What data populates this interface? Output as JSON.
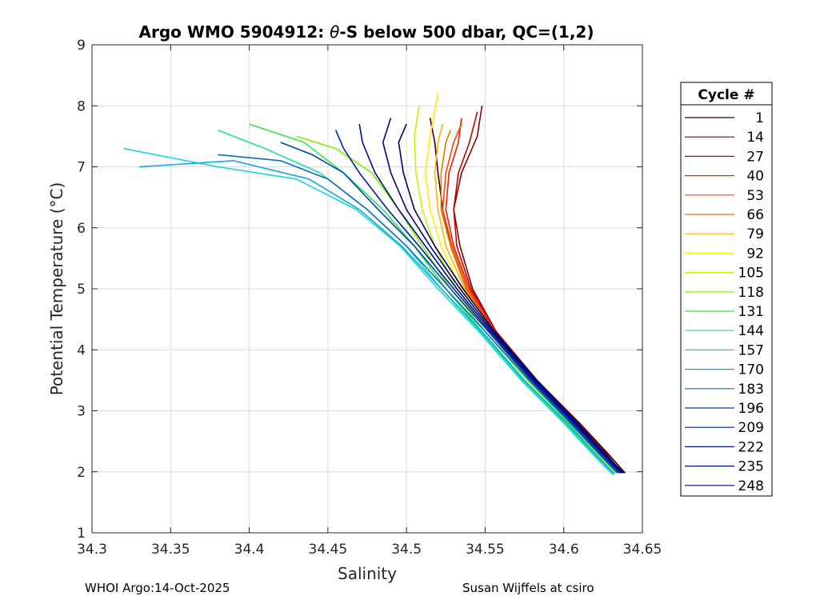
{
  "chart_data": {
    "type": "line",
    "title": "Argo WMO 5904912: θ-S below 500 dbar,  QC=(1,2)",
    "title_parts": {
      "prefix": "Argo WMO 5904912: ",
      "symbol": "θ",
      "suffix": "-S below 500 dbar,  QC=(1,2)"
    },
    "xlabel": "Salinity",
    "ylabel": "Potential Temperature (°C)",
    "xlim": [
      34.3,
      34.65
    ],
    "ylim": [
      1,
      9
    ],
    "xticks": [
      34.3,
      34.35,
      34.4,
      34.45,
      34.5,
      34.55,
      34.6,
      34.65
    ],
    "xtick_labels": [
      "34.3",
      "34.35",
      "34.4",
      "34.45",
      "34.5",
      "34.55",
      "34.6",
      "34.65"
    ],
    "yticks": [
      1,
      2,
      3,
      4,
      5,
      6,
      7,
      8,
      9
    ],
    "ytick_labels": [
      "1",
      "2",
      "3",
      "4",
      "5",
      "6",
      "7",
      "8",
      "9"
    ],
    "grid": true,
    "legend_position": "right",
    "legend": {
      "title": "Cycle #",
      "entries": [
        {
          "label": "1",
          "color": "#3c0000"
        },
        {
          "label": "14",
          "color": "#8c0000"
        },
        {
          "label": "27",
          "color": "#c80000"
        },
        {
          "label": "40",
          "color": "#ee1c00"
        },
        {
          "label": "53",
          "color": "#ff4400"
        },
        {
          "label": "66",
          "color": "#e37800"
        },
        {
          "label": "79",
          "color": "#ffb400"
        },
        {
          "label": "92",
          "color": "#ffee00"
        },
        {
          "label": "105",
          "color": "#c2f500"
        },
        {
          "label": "118",
          "color": "#7cf000"
        },
        {
          "label": "131",
          "color": "#2ee84a"
        },
        {
          "label": "144",
          "color": "#18e6a0"
        },
        {
          "label": "157",
          "color": "#13d8d8"
        },
        {
          "label": "170",
          "color": "#10a8e0"
        },
        {
          "label": "183",
          "color": "#0a6ec8"
        },
        {
          "label": "196",
          "color": "#0046b4"
        },
        {
          "label": "209",
          "color": "#0020a0"
        },
        {
          "label": "222",
          "color": "#000c8c"
        },
        {
          "label": "235",
          "color": "#000680"
        },
        {
          "label": "248",
          "color": "#000070"
        }
      ]
    },
    "series": [
      {
        "name": "1",
        "color": "#3c0000",
        "x": [
          34.639,
          34.628,
          34.61,
          34.582,
          34.555,
          34.538,
          34.528,
          34.523,
          34.52,
          34.518,
          34.515
        ],
        "y": [
          1.98,
          2.3,
          2.8,
          3.5,
          4.3,
          5.0,
          5.7,
          6.3,
          6.9,
          7.4,
          7.8
        ]
      },
      {
        "name": "14",
        "color": "#8c0000",
        "x": [
          34.637,
          34.627,
          34.61,
          34.583,
          34.557,
          34.542,
          34.534,
          34.53,
          34.535,
          34.545,
          34.548
        ],
        "y": [
          1.98,
          2.3,
          2.8,
          3.5,
          4.3,
          5.0,
          5.7,
          6.3,
          6.9,
          7.5,
          8.0
        ]
      },
      {
        "name": "27",
        "color": "#c80000",
        "x": [
          34.636,
          34.626,
          34.609,
          34.583,
          34.557,
          34.541,
          34.532,
          34.53,
          34.533,
          34.54,
          34.545
        ],
        "y": [
          1.98,
          2.3,
          2.8,
          3.5,
          4.3,
          5.0,
          5.7,
          6.3,
          6.9,
          7.4,
          7.9
        ]
      },
      {
        "name": "40",
        "color": "#ee1c00",
        "x": [
          34.636,
          34.625,
          34.608,
          34.582,
          34.556,
          34.54,
          34.53,
          34.525,
          34.527,
          34.533,
          34.535
        ],
        "y": [
          1.98,
          2.3,
          2.8,
          3.5,
          4.3,
          5.0,
          5.7,
          6.3,
          6.9,
          7.4,
          7.8
        ]
      },
      {
        "name": "53",
        "color": "#ff4400",
        "x": [
          34.635,
          34.625,
          34.608,
          34.581,
          34.555,
          34.539,
          34.529,
          34.523,
          34.525,
          34.53,
          34.535
        ],
        "y": [
          1.98,
          2.3,
          2.8,
          3.5,
          4.3,
          5.0,
          5.7,
          6.3,
          6.9,
          7.4,
          7.7
        ]
      },
      {
        "name": "66",
        "color": "#e37800",
        "x": [
          34.634,
          34.624,
          34.607,
          34.58,
          34.555,
          34.538,
          34.528,
          34.522,
          34.522,
          34.525,
          34.528
        ],
        "y": [
          1.98,
          2.3,
          2.8,
          3.5,
          4.3,
          5.0,
          5.7,
          6.3,
          6.9,
          7.4,
          7.6
        ]
      },
      {
        "name": "79",
        "color": "#ffb400",
        "x": [
          34.634,
          34.623,
          34.606,
          34.58,
          34.555,
          34.537,
          34.525,
          34.52,
          34.518,
          34.52,
          34.523
        ],
        "y": [
          1.98,
          2.3,
          2.8,
          3.5,
          4.3,
          5.0,
          5.7,
          6.3,
          6.9,
          7.4,
          7.7
        ]
      },
      {
        "name": "92",
        "color": "#ffee00",
        "x": [
          34.633,
          34.622,
          34.605,
          34.579,
          34.554,
          34.535,
          34.522,
          34.515,
          34.512,
          34.515,
          34.52
        ],
        "y": [
          1.97,
          2.3,
          2.8,
          3.5,
          4.3,
          5.0,
          5.7,
          6.3,
          6.9,
          7.5,
          8.2
        ]
      },
      {
        "name": "105",
        "color": "#c2f500",
        "x": [
          34.633,
          34.621,
          34.604,
          34.578,
          34.552,
          34.532,
          34.518,
          34.51,
          34.506,
          34.505,
          34.508
        ],
        "y": [
          1.97,
          2.3,
          2.8,
          3.5,
          4.3,
          5.0,
          5.7,
          6.3,
          6.9,
          7.5,
          8.0
        ]
      },
      {
        "name": "118",
        "color": "#7cf000",
        "x": [
          34.632,
          34.62,
          34.603,
          34.577,
          34.55,
          34.528,
          34.51,
          34.495,
          34.478,
          34.455,
          34.43
        ],
        "y": [
          1.96,
          2.3,
          2.8,
          3.5,
          4.3,
          5.0,
          5.7,
          6.3,
          6.9,
          7.3,
          7.5
        ]
      },
      {
        "name": "131",
        "color": "#2ee84a",
        "x": [
          34.632,
          34.62,
          34.602,
          34.575,
          34.548,
          34.525,
          34.505,
          34.485,
          34.46,
          34.435,
          34.4
        ],
        "y": [
          1.96,
          2.3,
          2.8,
          3.5,
          4.3,
          5.0,
          5.7,
          6.3,
          6.9,
          7.4,
          7.7
        ]
      },
      {
        "name": "144",
        "color": "#18e6a0",
        "x": [
          34.631,
          34.619,
          34.601,
          34.574,
          34.547,
          34.522,
          34.5,
          34.475,
          34.445,
          34.41,
          34.38
        ],
        "y": [
          1.96,
          2.3,
          2.8,
          3.5,
          4.3,
          5.0,
          5.7,
          6.3,
          6.9,
          7.3,
          7.6
        ]
      },
      {
        "name": "157",
        "color": "#13d8d8",
        "x": [
          34.631,
          34.618,
          34.6,
          34.573,
          34.546,
          34.52,
          34.496,
          34.468,
          34.43,
          34.38,
          34.32
        ],
        "y": [
          1.96,
          2.3,
          2.8,
          3.5,
          4.3,
          5.0,
          5.7,
          6.3,
          6.8,
          7.0,
          7.3
        ]
      },
      {
        "name": "170",
        "color": "#10a8e0",
        "x": [
          34.632,
          34.62,
          34.602,
          34.575,
          34.548,
          34.522,
          34.497,
          34.47,
          34.438,
          34.39,
          34.33
        ],
        "y": [
          1.97,
          2.3,
          2.8,
          3.5,
          4.3,
          5.0,
          5.7,
          6.3,
          6.8,
          7.1,
          7.0
        ]
      },
      {
        "name": "183",
        "color": "#0a6ec8",
        "x": [
          34.634,
          34.622,
          34.604,
          34.578,
          34.55,
          34.525,
          34.5,
          34.475,
          34.45,
          34.42,
          34.38
        ],
        "y": [
          1.98,
          2.3,
          2.8,
          3.5,
          4.3,
          5.0,
          5.7,
          6.3,
          6.8,
          7.1,
          7.2
        ]
      },
      {
        "name": "196",
        "color": "#0046b4",
        "x": [
          34.635,
          34.623,
          34.605,
          34.579,
          34.552,
          34.528,
          34.505,
          34.482,
          34.46,
          34.44,
          34.42
        ],
        "y": [
          1.98,
          2.3,
          2.8,
          3.5,
          4.3,
          5.0,
          5.7,
          6.3,
          6.9,
          7.2,
          7.4
        ]
      },
      {
        "name": "209",
        "color": "#0020a0",
        "x": [
          34.636,
          34.624,
          34.606,
          34.58,
          34.553,
          34.53,
          34.508,
          34.488,
          34.47,
          34.46,
          34.455
        ],
        "y": [
          1.98,
          2.3,
          2.8,
          3.5,
          4.3,
          5.0,
          5.7,
          6.3,
          6.9,
          7.3,
          7.6
        ]
      },
      {
        "name": "222",
        "color": "#000c8c",
        "x": [
          34.637,
          34.625,
          34.607,
          34.581,
          34.554,
          34.532,
          34.512,
          34.495,
          34.48,
          34.472,
          34.47
        ],
        "y": [
          1.98,
          2.3,
          2.8,
          3.5,
          4.3,
          5.0,
          5.7,
          6.3,
          6.9,
          7.4,
          7.7
        ]
      },
      {
        "name": "235",
        "color": "#000680",
        "x": [
          34.638,
          34.626,
          34.608,
          34.582,
          34.555,
          34.534,
          34.515,
          34.5,
          34.49,
          34.485,
          34.49
        ],
        "y": [
          1.98,
          2.3,
          2.8,
          3.5,
          4.3,
          5.0,
          5.7,
          6.3,
          6.9,
          7.4,
          7.8
        ]
      },
      {
        "name": "248",
        "color": "#000070",
        "x": [
          34.638,
          34.626,
          34.609,
          34.583,
          34.556,
          34.536,
          34.518,
          34.505,
          34.498,
          34.495,
          34.5
        ],
        "y": [
          1.98,
          2.3,
          2.8,
          3.5,
          4.3,
          5.0,
          5.7,
          6.3,
          6.9,
          7.4,
          7.7
        ]
      }
    ]
  },
  "footer": {
    "left": "WHOI Argo:14-Oct-2025",
    "right": "Susan Wijffels at csiro"
  }
}
